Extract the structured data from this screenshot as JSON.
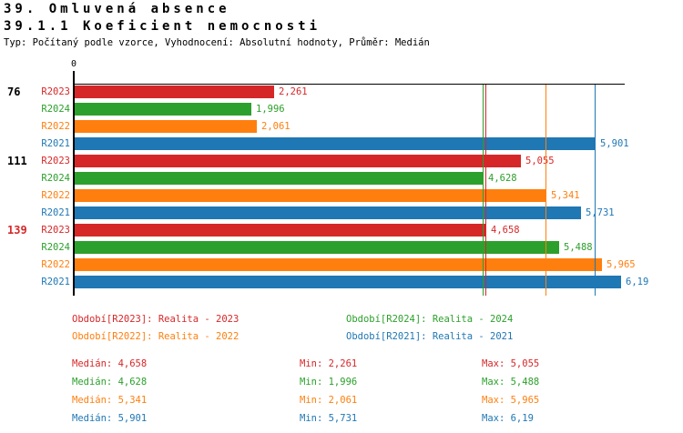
{
  "header": {
    "title": "39. Omluvená absence",
    "subtitle": "39.1.1 Koeficient nemocnosti",
    "type_line": "Typ: Počítaný podle vzorce, Vyhodnocení: Absolutní hodnoty, Průměr: Medián"
  },
  "colors": {
    "R2023": "#d62728",
    "R2024": "#2ca02c",
    "R2022": "#ff7f0e",
    "R2021": "#1f77b4",
    "axis": "#000000",
    "highlight_group": "#d62728",
    "normal_group": "#000000"
  },
  "chart_data": {
    "type": "bar",
    "orientation": "horizontal",
    "axis": {
      "origin_label": "0",
      "xmin": 0,
      "xmax_drawn": 6.24
    },
    "series_order": [
      "R2023",
      "R2024",
      "R2022",
      "R2021"
    ],
    "groups": [
      {
        "label": "76",
        "highlight": false,
        "bars": [
          {
            "series": "R2023",
            "value": 2.261,
            "display": "2,261"
          },
          {
            "series": "R2024",
            "value": 1.996,
            "display": "1,996"
          },
          {
            "series": "R2022",
            "value": 2.061,
            "display": "2,061"
          },
          {
            "series": "R2021",
            "value": 5.901,
            "display": "5,901"
          }
        ]
      },
      {
        "label": "111",
        "highlight": false,
        "bars": [
          {
            "series": "R2023",
            "value": 5.055,
            "display": "5,055"
          },
          {
            "series": "R2024",
            "value": 4.628,
            "display": "4,628"
          },
          {
            "series": "R2022",
            "value": 5.341,
            "display": "5,341"
          },
          {
            "series": "R2021",
            "value": 5.731,
            "display": "5,731"
          }
        ]
      },
      {
        "label": "139",
        "highlight": true,
        "bars": [
          {
            "series": "R2023",
            "value": 4.658,
            "display": "4,658"
          },
          {
            "series": "R2024",
            "value": 5.488,
            "display": "5,488"
          },
          {
            "series": "R2022",
            "value": 5.965,
            "display": "5,965"
          },
          {
            "series": "R2021",
            "value": 6.19,
            "display": "6,19"
          }
        ]
      }
    ],
    "median_lines": [
      {
        "series": "R2024",
        "value": 4.628
      },
      {
        "series": "R2023",
        "value": 4.658
      },
      {
        "series": "R2022",
        "value": 5.341
      },
      {
        "series": "R2021",
        "value": 5.901
      }
    ]
  },
  "legend": [
    {
      "series": "R2023",
      "label": "Období[R2023]: Realita - 2023"
    },
    {
      "series": "R2024",
      "label": "Období[R2024]: Realita - 2024"
    },
    {
      "series": "R2022",
      "label": "Období[R2022]: Realita - 2022"
    },
    {
      "series": "R2021",
      "label": "Období[R2021]: Realita - 2021"
    }
  ],
  "stats": [
    {
      "series": "R2023",
      "median": "Medián: 4,658",
      "min": "Min: 2,261",
      "max": "Max: 5,055"
    },
    {
      "series": "R2024",
      "median": "Medián: 4,628",
      "min": "Min: 1,996",
      "max": "Max: 5,488"
    },
    {
      "series": "R2022",
      "median": "Medián: 5,341",
      "min": "Min: 2,061",
      "max": "Max: 5,965"
    },
    {
      "series": "R2021",
      "median": "Medián: 5,901",
      "min": "Min: 5,731",
      "max": "Max: 6,19"
    }
  ]
}
